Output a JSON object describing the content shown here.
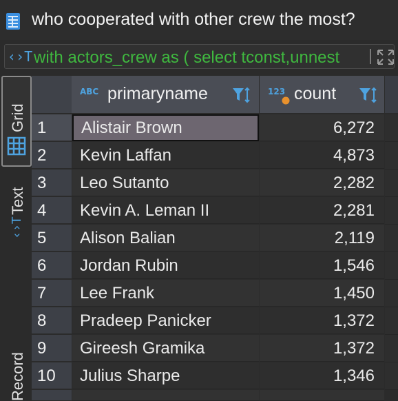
{
  "window": {
    "title": "who cooperated with other crew the most?"
  },
  "query": {
    "text": "with actors_crew as ( select tconst,unnest"
  },
  "side_tabs": [
    {
      "label": "Grid",
      "active": true
    },
    {
      "label": "Text",
      "active": false
    },
    {
      "label": "Record",
      "active": false
    }
  ],
  "columns": [
    {
      "type_badge": "ABC",
      "label": "primaryname"
    },
    {
      "type_badge": "123",
      "label": "count"
    }
  ],
  "rows": [
    {
      "num": "1",
      "name": "Alistair Brown",
      "count": "6,272"
    },
    {
      "num": "2",
      "name": "Kevin Laffan",
      "count": "4,873"
    },
    {
      "num": "3",
      "name": "Leo Sutanto",
      "count": "2,282"
    },
    {
      "num": "4",
      "name": "Kevin A. Leman II",
      "count": "2,281"
    },
    {
      "num": "5",
      "name": "Alison Balian",
      "count": "2,119"
    },
    {
      "num": "6",
      "name": "Jordan Rubin",
      "count": "1,546"
    },
    {
      "num": "7",
      "name": "Lee Frank",
      "count": "1,450"
    },
    {
      "num": "8",
      "name": "Pradeep Panicker",
      "count": "1,372"
    },
    {
      "num": "9",
      "name": "Gireesh Gramika",
      "count": "1,372"
    },
    {
      "num": "10",
      "name": "Julius Sharpe",
      "count": "1,346"
    }
  ],
  "colors": {
    "accent": "#4ea3e0",
    "query_text": "#3fb83f",
    "badge_orange": "#e8912d"
  }
}
